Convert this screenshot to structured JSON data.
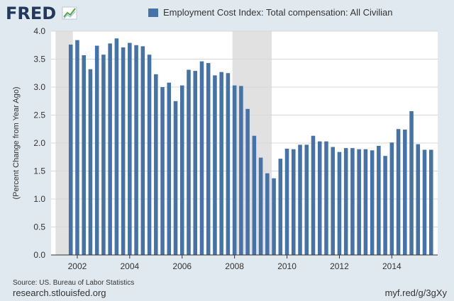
{
  "brand": {
    "name": "FRED"
  },
  "source_text": "Source: US. Bureau of Labor Statistics",
  "site_url": "research.stlouisfed.org",
  "short_url": "myf.red/g/3gXy",
  "colors": {
    "background": "#e1e9f0",
    "plot_bg": "#ffffff",
    "bar": "#4572a7",
    "recession": "#e1e1e1",
    "grid": "#d8d8d8"
  },
  "chart_data": {
    "type": "bar",
    "ylabel": "(Percent Change from Year Ago)",
    "ylim": [
      0,
      4
    ],
    "yticks": [
      "0.0",
      "0.5",
      "1.0",
      "1.5",
      "2.0",
      "2.5",
      "3.0",
      "3.5",
      "4.0"
    ],
    "xticks": [
      "2002",
      "2004",
      "2006",
      "2008",
      "2010",
      "2012",
      "2014"
    ],
    "xrange": [
      2001.0,
      2015.75
    ],
    "grid": true,
    "legend_position": "top",
    "recessions": [
      [
        2001.17,
        2001.83
      ],
      [
        2007.92,
        2009.42
      ]
    ],
    "series": [
      {
        "name": "Employment Cost Index: Total compensation: All Civilian",
        "x": [
          2001.75,
          2002.0,
          2002.25,
          2002.5,
          2002.75,
          2003.0,
          2003.25,
          2003.5,
          2003.75,
          2004.0,
          2004.25,
          2004.5,
          2004.75,
          2005.0,
          2005.25,
          2005.5,
          2005.75,
          2006.0,
          2006.25,
          2006.5,
          2006.75,
          2007.0,
          2007.25,
          2007.5,
          2007.75,
          2008.0,
          2008.25,
          2008.5,
          2008.75,
          2009.0,
          2009.25,
          2009.5,
          2009.75,
          2010.0,
          2010.25,
          2010.5,
          2010.75,
          2011.0,
          2011.25,
          2011.5,
          2011.75,
          2012.0,
          2012.25,
          2012.5,
          2012.75,
          2013.0,
          2013.25,
          2013.5,
          2013.75,
          2014.0,
          2014.25,
          2014.5,
          2014.75,
          2015.0,
          2015.25,
          2015.5
        ],
        "values": [
          3.76,
          3.84,
          3.57,
          3.32,
          3.74,
          3.58,
          3.78,
          3.87,
          3.71,
          3.79,
          3.75,
          3.73,
          3.58,
          3.23,
          3.0,
          3.08,
          2.75,
          3.03,
          3.31,
          3.29,
          3.46,
          3.43,
          3.21,
          3.27,
          3.25,
          3.03,
          3.02,
          2.61,
          2.13,
          1.74,
          1.46,
          1.37,
          1.72,
          1.9,
          1.89,
          1.97,
          1.97,
          2.13,
          2.03,
          2.03,
          1.93,
          1.84,
          1.91,
          1.91,
          1.89,
          1.89,
          1.87,
          1.95,
          1.77,
          2.01,
          2.25,
          2.24,
          2.57,
          1.98,
          1.88,
          1.88
        ]
      }
    ]
  }
}
